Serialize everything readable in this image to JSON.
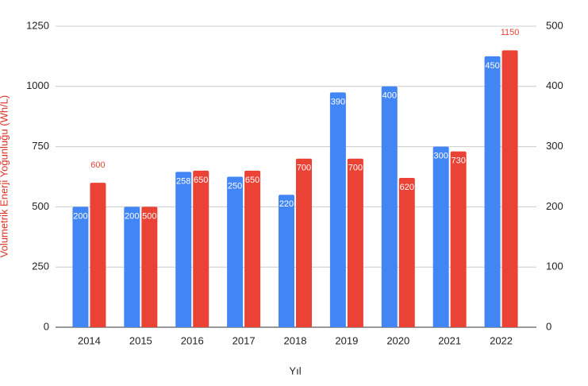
{
  "chart_data": {
    "type": "bar",
    "categories": [
      "2014",
      "2015",
      "2016",
      "2017",
      "2018",
      "2019",
      "2020",
      "2021",
      "2022"
    ],
    "series": [
      {
        "color": "#4285f4",
        "axis": "y2",
        "values": [
          200,
          200,
          258,
          250,
          220,
          390,
          400,
          300,
          450
        ]
      },
      {
        "color": "#ea4335",
        "values": [
          600,
          500,
          650,
          650,
          700,
          700,
          620,
          730,
          1150
        ]
      }
    ],
    "xlabel": "Yıl",
    "ylabel": "Volumetrik Enerji Yoğunluğu (Wh/L)",
    "ylim": [
      0,
      1250
    ],
    "yticks": [
      0,
      250,
      500,
      750,
      1000,
      1250
    ],
    "y2lim": [
      0,
      500
    ],
    "y2ticks": [
      0,
      100,
      200,
      300,
      400,
      500
    ],
    "grid": true
  }
}
